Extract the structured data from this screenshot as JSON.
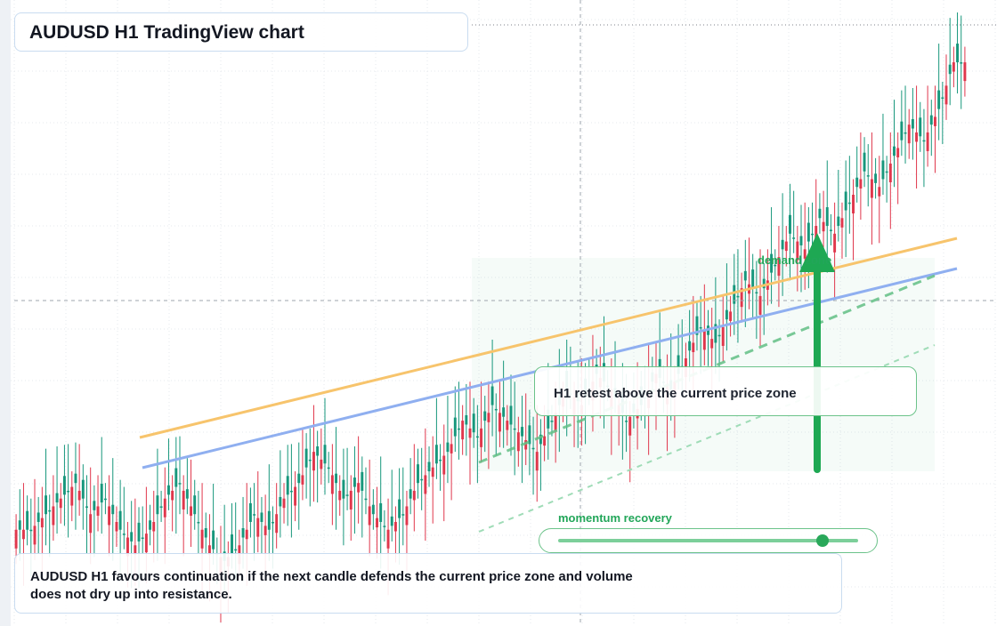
{
  "title": "AUDUSD H1 TradingView chart",
  "callout": "H1 retest above the current price zone",
  "zone_label": "demand zone",
  "momentum": {
    "label": "momentum recovery",
    "level": 0.88
  },
  "note": "AUDUSD H1 favours continuation if the next candle defends the current price zone and volume does not dry up into resistance.",
  "colors": {
    "bull": "#17977c",
    "bear": "#e0374c",
    "accent_green": "#22a659",
    "trend_orange": "#f7c46c",
    "trend_blue": "#8faff0"
  },
  "icons": {
    "direction_arrow": "up-arrow-icon"
  },
  "chart_data": {
    "type": "candlestick",
    "symbol": "AUDUSD",
    "timeframe": "H1",
    "note": "price axis not labeled; values are relative chart units",
    "candles": [
      [
        5,
        4,
        7,
        2
      ],
      [
        5,
        6,
        7,
        4
      ],
      [
        6,
        7,
        8,
        5
      ],
      [
        7,
        8,
        10,
        6
      ],
      [
        8,
        6,
        9,
        5
      ],
      [
        6,
        7,
        8,
        5
      ],
      [
        7,
        5,
        8,
        4
      ],
      [
        5,
        4,
        6,
        3
      ],
      [
        4,
        5,
        6,
        3
      ],
      [
        5,
        7,
        8,
        4
      ],
      [
        7,
        8,
        9,
        6
      ],
      [
        8,
        6,
        9,
        5
      ],
      [
        6,
        4,
        7,
        3
      ],
      [
        4,
        3,
        5,
        2
      ],
      [
        3,
        4,
        5,
        2
      ],
      [
        4,
        6,
        7,
        3
      ],
      [
        6,
        5,
        7,
        4
      ],
      [
        5,
        7,
        8,
        4
      ],
      [
        7,
        8,
        10,
        6
      ],
      [
        8,
        10,
        11,
        7
      ],
      [
        10,
        9,
        11,
        8
      ],
      [
        9,
        7,
        10,
        6
      ],
      [
        7,
        8,
        9,
        6
      ],
      [
        8,
        6,
        9,
        5
      ],
      [
        6,
        5,
        7,
        4
      ],
      [
        5,
        6,
        7,
        4
      ],
      [
        6,
        8,
        9,
        5
      ],
      [
        8,
        9,
        10,
        7
      ],
      [
        9,
        10,
        12,
        8
      ],
      [
        10,
        12,
        13,
        9
      ],
      [
        12,
        11,
        13,
        10
      ],
      [
        11,
        13,
        14,
        10
      ],
      [
        13,
        12,
        14,
        11
      ],
      [
        12,
        11,
        13,
        10
      ],
      [
        11,
        10,
        12,
        9
      ],
      [
        10,
        12,
        13,
        9
      ],
      [
        12,
        14,
        15,
        11
      ],
      [
        14,
        13,
        15,
        12
      ],
      [
        13,
        15,
        16,
        12
      ],
      [
        15,
        14,
        16,
        13
      ],
      [
        14,
        12,
        15,
        11
      ],
      [
        12,
        13,
        14,
        11
      ],
      [
        13,
        15,
        16,
        12
      ],
      [
        15,
        14,
        16,
        13
      ],
      [
        14,
        16,
        17,
        13
      ],
      [
        16,
        18,
        19,
        15
      ],
      [
        18,
        17,
        19,
        16
      ],
      [
        17,
        19,
        20,
        16
      ],
      [
        19,
        21,
        22,
        18
      ],
      [
        21,
        20,
        22,
        19
      ],
      [
        20,
        22,
        23,
        19
      ],
      [
        22,
        24,
        25,
        21
      ],
      [
        24,
        23,
        25,
        22
      ],
      [
        23,
        25,
        26,
        22
      ],
      [
        25,
        24,
        26,
        23
      ],
      [
        24,
        26,
        28,
        23
      ],
      [
        26,
        28,
        29,
        25
      ],
      [
        28,
        27,
        29,
        26
      ],
      [
        27,
        29,
        30,
        26
      ],
      [
        29,
        31,
        32,
        28
      ],
      [
        31,
        30,
        32,
        29
      ],
      [
        30,
        32,
        34,
        29
      ],
      [
        32,
        35,
        36,
        31
      ],
      [
        35,
        38,
        40,
        34
      ]
    ]
  }
}
